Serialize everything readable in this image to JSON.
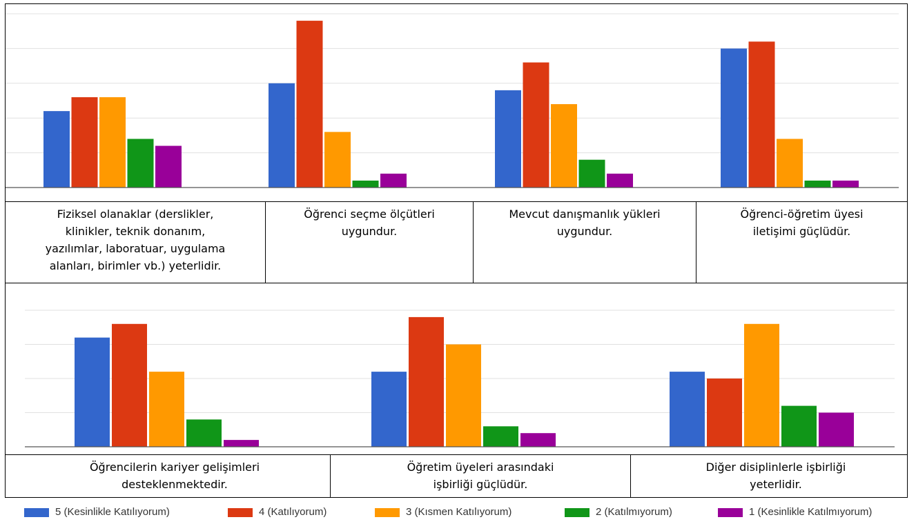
{
  "chart_data": [
    {
      "type": "bar",
      "categories": [
        "Fiziksel olanaklar (derslikler, klinikler, teknik donanım, yazılımlar, laboratuar, uygulama alanları, birimler vb.) yeterlidir.",
        "Öğrenci seçme ölçütleri uygundur.",
        "Mevcut danışmanlık yükleri uygundur.",
        "Öğrenci-öğretim üyesi iletişimi güçlüdür."
      ],
      "series": [
        {
          "name": "5 (Kesinlikle Katılıyorum)",
          "values": [
            22,
            30,
            28,
            40
          ]
        },
        {
          "name": "4 (Katılıyorum)",
          "values": [
            26,
            48,
            36,
            42
          ]
        },
        {
          "name": "3 (Kısmen Katılıyorum)",
          "values": [
            26,
            16,
            24,
            14
          ]
        },
        {
          "name": "2 (Katılmıyorum)",
          "values": [
            14,
            2,
            8,
            2
          ]
        },
        {
          "name": "1 (Kesinlikle Katılmıyorum)",
          "values": [
            12,
            4,
            4,
            2
          ]
        }
      ],
      "ylim": [
        0,
        50
      ],
      "grid": true,
      "legend": "bottom"
    },
    {
      "type": "bar",
      "categories": [
        "Öğrencilerin kariyer gelişimleri desteklenmektedir.",
        "Öğretim üyeleri arasındaki işbirliği güçlüdür.",
        "Diğer disiplinlerle işbirliği yeterlidir."
      ],
      "series": [
        {
          "name": "5 (Kesinlikle Katılıyorum)",
          "values": [
            32,
            22,
            22
          ]
        },
        {
          "name": "4 (Katılıyorum)",
          "values": [
            36,
            38,
            20
          ]
        },
        {
          "name": "3 (Kısmen Katılıyorum)",
          "values": [
            22,
            30,
            36
          ]
        },
        {
          "name": "2 (Katılmıyorum)",
          "values": [
            8,
            6,
            12
          ]
        },
        {
          "name": "1 (Kesinlikle Katılmıyorum)",
          "values": [
            2,
            4,
            10
          ]
        }
      ],
      "ylim": [
        0,
        40
      ],
      "grid": true,
      "legend": "bottom"
    }
  ],
  "captions": {
    "top": [
      "Fiziksel olanaklar (derslikler,\nklinikler, teknik donanım,\nyazılımlar, laboratuar, uygulama\nalanları, birimler vb.) yeterlidir.",
      "Öğrenci seçme ölçütleri\nuygundur.",
      "Mevcut danışmanlık yükleri\nuygundur.",
      "Öğrenci-öğretim üyesi\niletişimi güçlüdür."
    ],
    "bottom": [
      "Öğrencilerin kariyer gelişimleri\ndesteklenmektedir.",
      "Öğretim üyeleri arasındaki\nişbirliği güçlüdür.",
      "Diğer disiplinlerle işbirliği\nyeterlidir."
    ]
  },
  "legend": [
    {
      "label": "5 (Kesinlikle Katılıyorum)",
      "color": "#3366cc"
    },
    {
      "label": "4 (Katılıyorum)",
      "color": "#dc3912"
    },
    {
      "label": "3 (Kısmen Katılıyorum)",
      "color": "#ff9900"
    },
    {
      "label": "2 (Katılmıyorum)",
      "color": "#109618"
    },
    {
      "label": "1 (Kesinlikle Katılmıyorum)",
      "color": "#990099"
    }
  ],
  "colors": {
    "grid": "#e0e0e0",
    "axis": "#555555"
  }
}
